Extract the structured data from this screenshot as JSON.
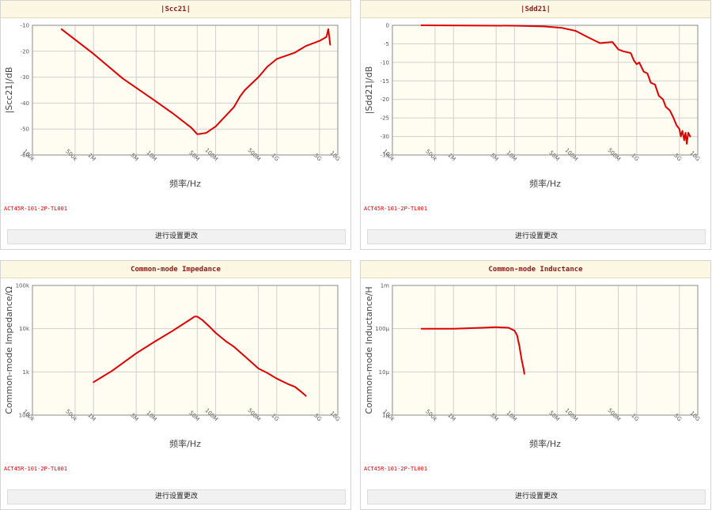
{
  "buttons": {
    "settings_label": "进行设置更改"
  },
  "colors": {
    "panel_header_bg": "#fcf7e3",
    "title_text": "#8b1a1a",
    "plot_bg": "#fffdf2",
    "curve": "#e00000",
    "grid": "#cfcfcf"
  },
  "panels": [
    {
      "title": "|Scc21|",
      "model": "ACT45R-101-2P-TL001"
    },
    {
      "title": "|Sdd21|",
      "model": "ACT45R-101-2P-TL001"
    },
    {
      "title": "Common-mode Impedance",
      "model": "ACT45R-101-2P-TL001"
    },
    {
      "title": "Common-mode Inductance",
      "model": "ACT45R-101-2P-TL001"
    }
  ],
  "chart_data": [
    {
      "type": "line",
      "title": "|Scc21|",
      "xlabel": "频率/Hz",
      "ylabel": "|Scc21|/dB",
      "x_scale": "log",
      "xlim": [
        100000,
        10000000000
      ],
      "x_ticks": [
        {
          "value": 100000,
          "label": "100k"
        },
        {
          "value": 500000,
          "label": "500k"
        },
        {
          "value": 1000000,
          "label": "1M"
        },
        {
          "value": 5000000,
          "label": "5M"
        },
        {
          "value": 10000000,
          "label": "10M"
        },
        {
          "value": 50000000,
          "label": "50M"
        },
        {
          "value": 100000000,
          "label": "100M"
        },
        {
          "value": 500000000,
          "label": "500M"
        },
        {
          "value": 1000000000,
          "label": "1G"
        },
        {
          "value": 5000000000,
          "label": "5G"
        },
        {
          "value": 10000000000,
          "label": "10G"
        }
      ],
      "y_scale": "linear",
      "ylim": [
        -60,
        -10
      ],
      "y_ticks": [
        {
          "value": -10,
          "label": "-10"
        },
        {
          "value": -20,
          "label": "-20"
        },
        {
          "value": -30,
          "label": "-30"
        },
        {
          "value": -40,
          "label": "-40"
        },
        {
          "value": -50,
          "label": "-50"
        },
        {
          "value": -60,
          "label": "-60"
        }
      ],
      "grid": true,
      "series": [
        {
          "x": [
            300000,
            1000000,
            3000000,
            10000000,
            20000000,
            40000000,
            50000000,
            70000000,
            100000000,
            200000000,
            250000000,
            300000000,
            500000000,
            700000000,
            1000000000,
            2000000000,
            3000000000,
            5000000000,
            6500000000,
            7000000000,
            7500000000
          ],
          "y": [
            -11.5,
            -21,
            -30.5,
            -39,
            -44,
            -49.5,
            -52,
            -51.5,
            -49,
            -41.5,
            -37.5,
            -35,
            -30,
            -26,
            -23,
            -20.5,
            -18,
            -16,
            -14.5,
            -11.5,
            -17.5
          ]
        }
      ]
    },
    {
      "type": "line",
      "title": "|Sdd21|",
      "xlabel": "频率/Hz",
      "ylabel": "|Sdd21|/dB",
      "x_scale": "log",
      "xlim": [
        100000,
        10000000000
      ],
      "x_ticks": [
        {
          "value": 100000,
          "label": "100k"
        },
        {
          "value": 500000,
          "label": "500k"
        },
        {
          "value": 1000000,
          "label": "1M"
        },
        {
          "value": 5000000,
          "label": "5M"
        },
        {
          "value": 10000000,
          "label": "10M"
        },
        {
          "value": 50000000,
          "label": "50M"
        },
        {
          "value": 100000000,
          "label": "100M"
        },
        {
          "value": 500000000,
          "label": "500M"
        },
        {
          "value": 1000000000,
          "label": "1G"
        },
        {
          "value": 5000000000,
          "label": "5G"
        },
        {
          "value": 10000000000,
          "label": "10G"
        }
      ],
      "y_scale": "linear",
      "ylim": [
        -35,
        0
      ],
      "y_ticks": [
        {
          "value": 0,
          "label": "0"
        },
        {
          "value": -5,
          "label": "-5"
        },
        {
          "value": -10,
          "label": "-10"
        },
        {
          "value": -15,
          "label": "-15"
        },
        {
          "value": -20,
          "label": "-20"
        },
        {
          "value": -25,
          "label": "-25"
        },
        {
          "value": -30,
          "label": "-30"
        },
        {
          "value": -35,
          "label": "-35"
        }
      ],
      "grid": true,
      "series": [
        {
          "x": [
            300000,
            10000000,
            30000000,
            60000000,
            100000000,
            150000000,
            250000000,
            400000000,
            500000000,
            600000000,
            800000000,
            900000000,
            1000000000,
            1100000000,
            1300000000,
            1500000000,
            1700000000,
            2000000000,
            2300000000,
            2700000000,
            3000000000,
            3500000000,
            4000000000,
            4500000000,
            5000000000,
            5300000000,
            5600000000,
            6000000000,
            6300000000,
            6600000000,
            7000000000,
            7500000000
          ],
          "y": [
            0,
            -0.1,
            -0.3,
            -0.7,
            -1.5,
            -3,
            -4.8,
            -4.5,
            -6.5,
            -7,
            -7.5,
            -9.5,
            -10.5,
            -10,
            -12.5,
            -13,
            -15.5,
            -16,
            -19,
            -20,
            -22,
            -23,
            -25,
            -27,
            -28,
            -30,
            -28.5,
            -31,
            -29,
            -32,
            -29,
            -30
          ]
        }
      ]
    },
    {
      "type": "line",
      "title": "Common-mode Impedance",
      "xlabel": "频率/Hz",
      "ylabel": "Common-mode Impedance/Ω",
      "x_scale": "log",
      "xlim": [
        100000,
        10000000000
      ],
      "x_ticks": [
        {
          "value": 100000,
          "label": "100k"
        },
        {
          "value": 500000,
          "label": "500k"
        },
        {
          "value": 1000000,
          "label": "1M"
        },
        {
          "value": 5000000,
          "label": "5M"
        },
        {
          "value": 10000000,
          "label": "10M"
        },
        {
          "value": 50000000,
          "label": "50M"
        },
        {
          "value": 100000000,
          "label": "100M"
        },
        {
          "value": 500000000,
          "label": "500M"
        },
        {
          "value": 1000000000,
          "label": "1G"
        },
        {
          "value": 5000000000,
          "label": "5G"
        },
        {
          "value": 10000000000,
          "label": "10G"
        }
      ],
      "y_scale": "log",
      "ylim": [
        100,
        100000
      ],
      "y_ticks": [
        {
          "value": 100,
          "label": "100"
        },
        {
          "value": 1000,
          "label": "1k"
        },
        {
          "value": 10000,
          "label": "10k"
        },
        {
          "value": 100000,
          "label": "100k"
        }
      ],
      "grid": true,
      "series": [
        {
          "x": [
            1000000,
            2000000,
            5000000,
            10000000,
            20000000,
            30000000,
            40000000,
            45000000,
            50000000,
            60000000,
            80000000,
            100000000,
            150000000,
            200000000,
            300000000,
            400000000,
            500000000,
            700000000,
            1000000000,
            1500000000,
            2000000000,
            2500000000,
            3000000000
          ],
          "y": [
            580,
            1050,
            2700,
            5000,
            9000,
            13000,
            17000,
            19000,
            19000,
            16000,
            11000,
            8000,
            5000,
            3800,
            2300,
            1600,
            1200,
            950,
            700,
            530,
            450,
            350,
            280
          ]
        }
      ]
    },
    {
      "type": "line",
      "title": "Common-mode Inductance",
      "xlabel": "频率/Hz",
      "ylabel": "Common-mode Inductance/H",
      "x_scale": "log",
      "xlim": [
        100000,
        10000000000
      ],
      "x_ticks": [
        {
          "value": 100000,
          "label": "100k"
        },
        {
          "value": 500000,
          "label": "500k"
        },
        {
          "value": 1000000,
          "label": "1M"
        },
        {
          "value": 5000000,
          "label": "5M"
        },
        {
          "value": 10000000,
          "label": "10M"
        },
        {
          "value": 50000000,
          "label": "50M"
        },
        {
          "value": 100000000,
          "label": "100M"
        },
        {
          "value": 500000000,
          "label": "500M"
        },
        {
          "value": 1000000000,
          "label": "1G"
        },
        {
          "value": 5000000000,
          "label": "5G"
        },
        {
          "value": 10000000000,
          "label": "10G"
        }
      ],
      "y_scale": "log",
      "ylim": [
        1e-06,
        0.001
      ],
      "y_ticks": [
        {
          "value": 1e-06,
          "label": "1μ"
        },
        {
          "value": 1e-05,
          "label": "10μ"
        },
        {
          "value": 0.0001,
          "label": "100μ"
        },
        {
          "value": 0.001,
          "label": "1m"
        }
      ],
      "grid": true,
      "series": [
        {
          "x": [
            300000,
            1000000,
            3000000,
            5000000,
            8000000,
            10000000,
            11000000,
            12000000,
            13000000,
            14000000,
            14500000
          ],
          "y": [
            0.0001,
            0.0001,
            0.000105,
            0.000108,
            0.000105,
            9e-05,
            7e-05,
            4e-05,
            2e-05,
            1.2e-05,
            9e-06
          ]
        }
      ]
    }
  ]
}
